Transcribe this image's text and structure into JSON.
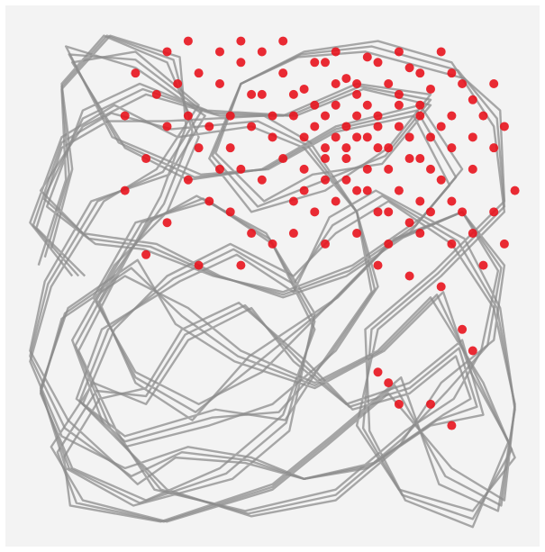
{
  "chart_data": {
    "type": "scatter",
    "title": "",
    "xlabel": "",
    "ylabel": "",
    "xlim": [
      0,
      1
    ],
    "ylim": [
      0,
      1
    ],
    "grid": false,
    "legend": "none",
    "series": [
      {
        "kind": "trajectory",
        "color": "#8c8c8c",
        "points": [
          [
            0.08,
            0.55
          ],
          [
            0.12,
            0.7
          ],
          [
            0.1,
            0.86
          ],
          [
            0.18,
            0.95
          ],
          [
            0.3,
            0.9
          ],
          [
            0.36,
            0.76
          ],
          [
            0.3,
            0.62
          ],
          [
            0.2,
            0.52
          ],
          [
            0.12,
            0.38
          ],
          [
            0.18,
            0.22
          ],
          [
            0.3,
            0.1
          ],
          [
            0.46,
            0.05
          ],
          [
            0.62,
            0.08
          ],
          [
            0.74,
            0.18
          ],
          [
            0.82,
            0.3
          ],
          [
            0.92,
            0.38
          ],
          [
            0.94,
            0.52
          ],
          [
            0.86,
            0.62
          ],
          [
            0.72,
            0.56
          ],
          [
            0.6,
            0.44
          ],
          [
            0.48,
            0.32
          ],
          [
            0.36,
            0.26
          ],
          [
            0.24,
            0.32
          ],
          [
            0.16,
            0.46
          ],
          [
            0.24,
            0.6
          ],
          [
            0.38,
            0.64
          ],
          [
            0.5,
            0.56
          ],
          [
            0.58,
            0.4
          ],
          [
            0.52,
            0.24
          ],
          [
            0.4,
            0.14
          ],
          [
            0.26,
            0.08
          ],
          [
            0.12,
            0.14
          ],
          [
            0.06,
            0.28
          ],
          [
            0.1,
            0.42
          ],
          [
            0.22,
            0.5
          ],
          [
            0.34,
            0.44
          ],
          [
            0.44,
            0.36
          ],
          [
            0.58,
            0.3
          ],
          [
            0.7,
            0.36
          ],
          [
            0.8,
            0.46
          ],
          [
            0.9,
            0.3
          ],
          [
            0.96,
            0.16
          ],
          [
            0.88,
            0.06
          ],
          [
            0.74,
            0.1
          ],
          [
            0.66,
            0.22
          ],
          [
            0.7,
            0.4
          ],
          [
            0.82,
            0.5
          ],
          [
            0.94,
            0.62
          ],
          [
            0.92,
            0.78
          ],
          [
            0.84,
            0.9
          ],
          [
            0.7,
            0.94
          ],
          [
            0.56,
            0.92
          ],
          [
            0.44,
            0.86
          ],
          [
            0.38,
            0.72
          ],
          [
            0.46,
            0.62
          ],
          [
            0.6,
            0.66
          ],
          [
            0.72,
            0.74
          ],
          [
            0.8,
            0.84
          ],
          [
            0.66,
            0.86
          ],
          [
            0.52,
            0.8
          ],
          [
            0.4,
            0.8
          ],
          [
            0.26,
            0.84
          ],
          [
            0.14,
            0.78
          ],
          [
            0.06,
            0.66
          ],
          [
            0.14,
            0.58
          ],
          [
            0.28,
            0.56
          ],
          [
            0.4,
            0.5
          ],
          [
            0.52,
            0.46
          ],
          [
            0.64,
            0.5
          ],
          [
            0.76,
            0.58
          ],
          [
            0.86,
            0.7
          ],
          [
            0.78,
            0.82
          ],
          [
            0.62,
            0.78
          ],
          [
            0.48,
            0.7
          ],
          [
            0.34,
            0.68
          ],
          [
            0.22,
            0.74
          ],
          [
            0.12,
            0.9
          ],
          [
            0.24,
            0.92
          ],
          [
            0.36,
            0.82
          ],
          [
            0.28,
            0.7
          ],
          [
            0.18,
            0.64
          ],
          [
            0.08,
            0.48
          ],
          [
            0.04,
            0.34
          ],
          [
            0.1,
            0.2
          ],
          [
            0.22,
            0.14
          ],
          [
            0.34,
            0.18
          ],
          [
            0.46,
            0.16
          ],
          [
            0.56,
            0.12
          ],
          [
            0.68,
            0.14
          ],
          [
            0.8,
            0.22
          ],
          [
            0.9,
            0.24
          ],
          [
            0.86,
            0.38
          ],
          [
            0.76,
            0.3
          ],
          [
            0.64,
            0.26
          ],
          [
            0.54,
            0.34
          ],
          [
            0.46,
            0.44
          ],
          [
            0.34,
            0.38
          ],
          [
            0.26,
            0.26
          ],
          [
            0.16,
            0.3
          ],
          [
            0.08,
            0.18
          ],
          [
            0.14,
            0.08
          ],
          [
            0.3,
            0.04
          ],
          [
            0.5,
            0.1
          ],
          [
            0.6,
            0.18
          ],
          [
            0.72,
            0.28
          ],
          [
            0.84,
            0.14
          ],
          [
            0.94,
            0.08
          ],
          [
            0.96,
            0.26
          ],
          [
            0.92,
            0.44
          ],
          [
            0.84,
            0.56
          ],
          [
            0.72,
            0.64
          ],
          [
            0.62,
            0.58
          ],
          [
            0.54,
            0.5
          ],
          [
            0.42,
            0.56
          ],
          [
            0.3,
            0.5
          ],
          [
            0.2,
            0.4
          ],
          [
            0.14,
            0.26
          ],
          [
            0.22,
            0.18
          ],
          [
            0.38,
            0.22
          ],
          [
            0.5,
            0.26
          ],
          [
            0.62,
            0.36
          ],
          [
            0.7,
            0.48
          ],
          [
            0.66,
            0.62
          ],
          [
            0.56,
            0.74
          ],
          [
            0.46,
            0.78
          ],
          [
            0.32,
            0.76
          ],
          [
            0.2,
            0.82
          ],
          [
            0.1,
            0.76
          ],
          [
            0.04,
            0.6
          ],
          [
            0.12,
            0.5
          ]
        ]
      },
      {
        "kind": "spikes",
        "color": "#e8141e",
        "points": [
          [
            0.36,
            0.88
          ],
          [
            0.4,
            0.86
          ],
          [
            0.44,
            0.9
          ],
          [
            0.48,
            0.84
          ],
          [
            0.52,
            0.88
          ],
          [
            0.56,
            0.85
          ],
          [
            0.6,
            0.9
          ],
          [
            0.64,
            0.87
          ],
          [
            0.68,
            0.91
          ],
          [
            0.72,
            0.86
          ],
          [
            0.76,
            0.89
          ],
          [
            0.8,
            0.85
          ],
          [
            0.84,
            0.88
          ],
          [
            0.88,
            0.83
          ],
          [
            0.92,
            0.86
          ],
          [
            0.62,
            0.82
          ],
          [
            0.66,
            0.8
          ],
          [
            0.7,
            0.78
          ],
          [
            0.74,
            0.82
          ],
          [
            0.78,
            0.8
          ],
          [
            0.58,
            0.78
          ],
          [
            0.54,
            0.8
          ],
          [
            0.5,
            0.76
          ],
          [
            0.46,
            0.78
          ],
          [
            0.42,
            0.8
          ],
          [
            0.38,
            0.78
          ],
          [
            0.6,
            0.74
          ],
          [
            0.64,
            0.72
          ],
          [
            0.68,
            0.7
          ],
          [
            0.72,
            0.74
          ],
          [
            0.76,
            0.72
          ],
          [
            0.8,
            0.76
          ],
          [
            0.84,
            0.74
          ],
          [
            0.88,
            0.7
          ],
          [
            0.56,
            0.7
          ],
          [
            0.52,
            0.72
          ],
          [
            0.48,
            0.68
          ],
          [
            0.44,
            0.7
          ],
          [
            0.66,
            0.66
          ],
          [
            0.7,
            0.62
          ],
          [
            0.74,
            0.66
          ],
          [
            0.78,
            0.64
          ],
          [
            0.82,
            0.68
          ],
          [
            0.86,
            0.62
          ],
          [
            0.62,
            0.64
          ],
          [
            0.58,
            0.62
          ],
          [
            0.54,
            0.64
          ],
          [
            0.62,
            0.76
          ],
          [
            0.66,
            0.76
          ],
          [
            0.7,
            0.74
          ],
          [
            0.58,
            0.82
          ],
          [
            0.54,
            0.84
          ],
          [
            0.74,
            0.78
          ],
          [
            0.78,
            0.72
          ],
          [
            0.82,
            0.78
          ],
          [
            0.64,
            0.78
          ],
          [
            0.68,
            0.82
          ],
          [
            0.6,
            0.8
          ],
          [
            0.56,
            0.76
          ],
          [
            0.72,
            0.7
          ],
          [
            0.76,
            0.76
          ],
          [
            0.8,
            0.7
          ],
          [
            0.84,
            0.8
          ],
          [
            0.88,
            0.76
          ],
          [
            0.9,
            0.8
          ],
          [
            0.92,
            0.74
          ],
          [
            0.94,
            0.78
          ],
          [
            0.5,
            0.8
          ],
          [
            0.46,
            0.84
          ],
          [
            0.42,
            0.74
          ],
          [
            0.4,
            0.7
          ],
          [
            0.36,
            0.74
          ],
          [
            0.34,
            0.8
          ],
          [
            0.32,
            0.86
          ],
          [
            0.28,
            0.84
          ],
          [
            0.3,
            0.78
          ],
          [
            0.38,
            0.64
          ],
          [
            0.42,
            0.62
          ],
          [
            0.46,
            0.58
          ],
          [
            0.5,
            0.56
          ],
          [
            0.54,
            0.58
          ],
          [
            0.6,
            0.56
          ],
          [
            0.66,
            0.58
          ],
          [
            0.72,
            0.56
          ],
          [
            0.78,
            0.58
          ],
          [
            0.84,
            0.56
          ],
          [
            0.88,
            0.58
          ],
          [
            0.92,
            0.62
          ],
          [
            0.44,
            0.52
          ],
          [
            0.36,
            0.52
          ],
          [
            0.26,
            0.54
          ],
          [
            0.3,
            0.6
          ],
          [
            0.22,
            0.66
          ],
          [
            0.26,
            0.72
          ],
          [
            0.34,
            0.68
          ],
          [
            0.7,
            0.52
          ],
          [
            0.76,
            0.5
          ],
          [
            0.82,
            0.48
          ],
          [
            0.86,
            0.4
          ],
          [
            0.88,
            0.36
          ],
          [
            0.72,
            0.3
          ],
          [
            0.74,
            0.26
          ],
          [
            0.7,
            0.32
          ],
          [
            0.8,
            0.26
          ],
          [
            0.84,
            0.22
          ],
          [
            0.9,
            0.52
          ],
          [
            0.94,
            0.56
          ],
          [
            0.96,
            0.66
          ],
          [
            0.24,
            0.88
          ],
          [
            0.22,
            0.8
          ],
          [
            0.58,
            0.9
          ],
          [
            0.62,
            0.92
          ],
          [
            0.66,
            0.86
          ],
          [
            0.7,
            0.9
          ],
          [
            0.74,
            0.92
          ],
          [
            0.78,
            0.88
          ],
          [
            0.82,
            0.92
          ],
          [
            0.86,
            0.86
          ],
          [
            0.4,
            0.92
          ],
          [
            0.44,
            0.94
          ],
          [
            0.48,
            0.92
          ],
          [
            0.52,
            0.94
          ],
          [
            0.3,
            0.92
          ],
          [
            0.34,
            0.94
          ],
          [
            0.56,
            0.66
          ],
          [
            0.6,
            0.68
          ],
          [
            0.64,
            0.68
          ],
          [
            0.68,
            0.66
          ],
          [
            0.72,
            0.62
          ],
          [
            0.76,
            0.6
          ],
          [
            0.8,
            0.62
          ],
          [
            0.84,
            0.64
          ],
          [
            0.6,
            0.72
          ],
          [
            0.64,
            0.74
          ],
          [
            0.68,
            0.76
          ],
          [
            0.7,
            0.8
          ],
          [
            0.66,
            0.84
          ],
          [
            0.62,
            0.86
          ],
          [
            0.74,
            0.84
          ],
          [
            0.78,
            0.82
          ]
        ]
      }
    ]
  }
}
